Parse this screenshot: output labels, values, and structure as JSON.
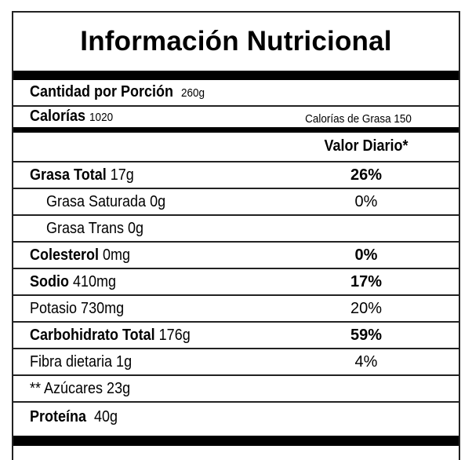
{
  "title": "Información Nutricional",
  "serving": {
    "label": "Cantidad por Porción",
    "value": "260g"
  },
  "calories": {
    "label": "Calorías",
    "value": "1020",
    "fat_calories": "Calorías de Grasa 150"
  },
  "daily_value_header": "Valor Diario*",
  "nutrients": [
    {
      "name": "Grasa  Total",
      "amount": "17g",
      "dv": "26%",
      "bold": true
    },
    {
      "name": "Grasa Saturada",
      "amount": "0g",
      "dv": "0%",
      "bold": false
    },
    {
      "name": "Grasa Trans",
      "amount": "0g",
      "dv": "",
      "bold": false
    },
    {
      "name": "Colesterol",
      "amount": "0mg",
      "dv": "0%",
      "bold": true
    },
    {
      "name": "Sodio",
      "amount": "410mg",
      "dv": "17%",
      "bold": true
    },
    {
      "name": "Potasio",
      "amount": "730mg",
      "dv": "20%",
      "bold": false
    },
    {
      "name": "Carbohidrato Total",
      "amount": "176g",
      "dv": "59%",
      "bold": true
    },
    {
      "name": "Fibra dietaria",
      "amount": "1g",
      "dv": "4%",
      "bold": false
    },
    {
      "name": "** Azúcares",
      "amount": "23g",
      "dv": "",
      "bold": false
    },
    {
      "name": "Proteína",
      "amount": "40g",
      "dv": "",
      "bold": true
    }
  ]
}
